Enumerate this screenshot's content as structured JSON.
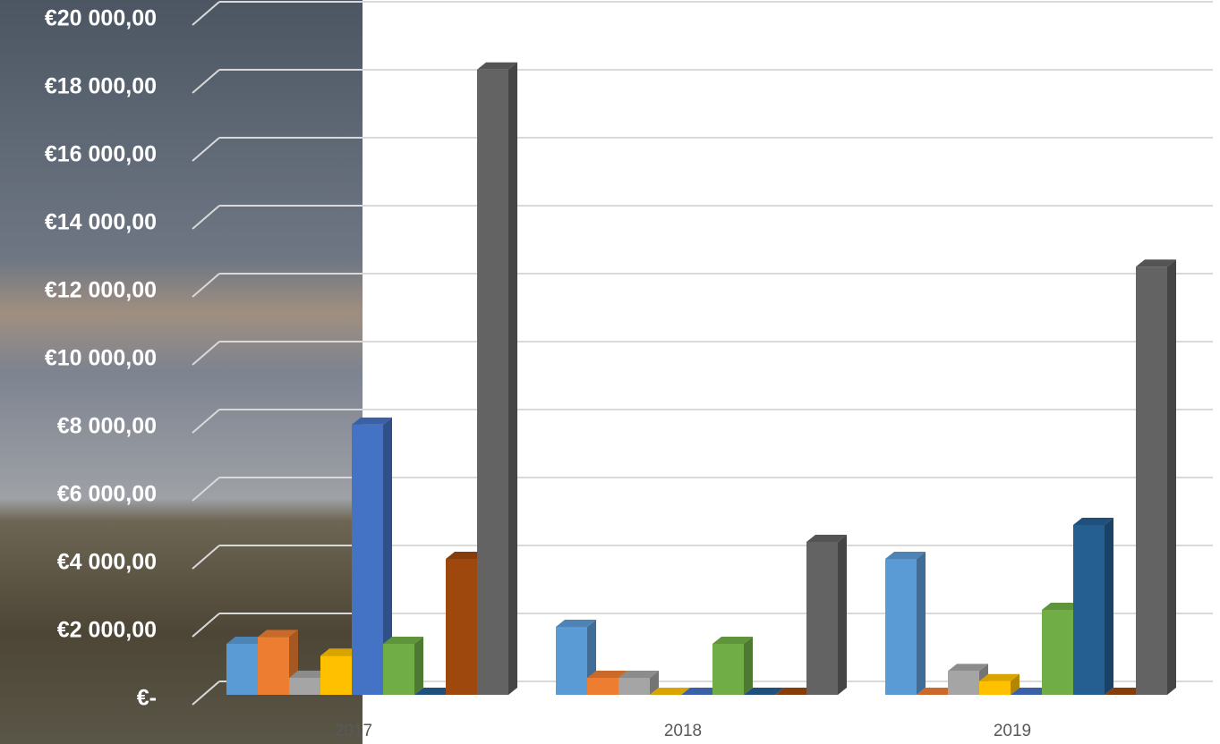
{
  "chart_data": {
    "type": "bar3d",
    "categories": [
      "2017",
      "2018",
      "2019"
    ],
    "series": [
      {
        "color": "#5b9bd5",
        "values": [
          1500,
          2000,
          4000
        ]
      },
      {
        "color": "#ed7d31",
        "values": [
          1700,
          500,
          0
        ]
      },
      {
        "color": "#a5a5a5",
        "values": [
          500,
          500,
          700
        ]
      },
      {
        "color": "#ffc000",
        "values": [
          1150,
          0,
          400
        ]
      },
      {
        "color": "#4472c4",
        "values": [
          7950,
          0,
          0
        ]
      },
      {
        "color": "#70ad47",
        "values": [
          1500,
          1500,
          2500
        ]
      },
      {
        "color": "#255e91",
        "values": [
          0,
          0,
          5000
        ]
      },
      {
        "color": "#9e480e",
        "values": [
          4000,
          0,
          0
        ]
      },
      {
        "color": "#636363",
        "values": [
          18400,
          4500,
          12600
        ]
      }
    ],
    "ylim": [
      0,
      20000
    ],
    "yticks": [
      {
        "value": 0,
        "label": "€-"
      },
      {
        "value": 2000,
        "label": "€2 000,00"
      },
      {
        "value": 4000,
        "label": "€4 000,00"
      },
      {
        "value": 6000,
        "label": "€6 000,00"
      },
      {
        "value": 8000,
        "label": "€8 000,00"
      },
      {
        "value": 10000,
        "label": "€10 000,00"
      },
      {
        "value": 12000,
        "label": "€12 000,00"
      },
      {
        "value": 14000,
        "label": "€14 000,00"
      },
      {
        "value": 16000,
        "label": "€16 000,00"
      },
      {
        "value": 18000,
        "label": "€18 000,00"
      },
      {
        "value": 20000,
        "label": "€20 000,00"
      }
    ],
    "grid": true
  }
}
